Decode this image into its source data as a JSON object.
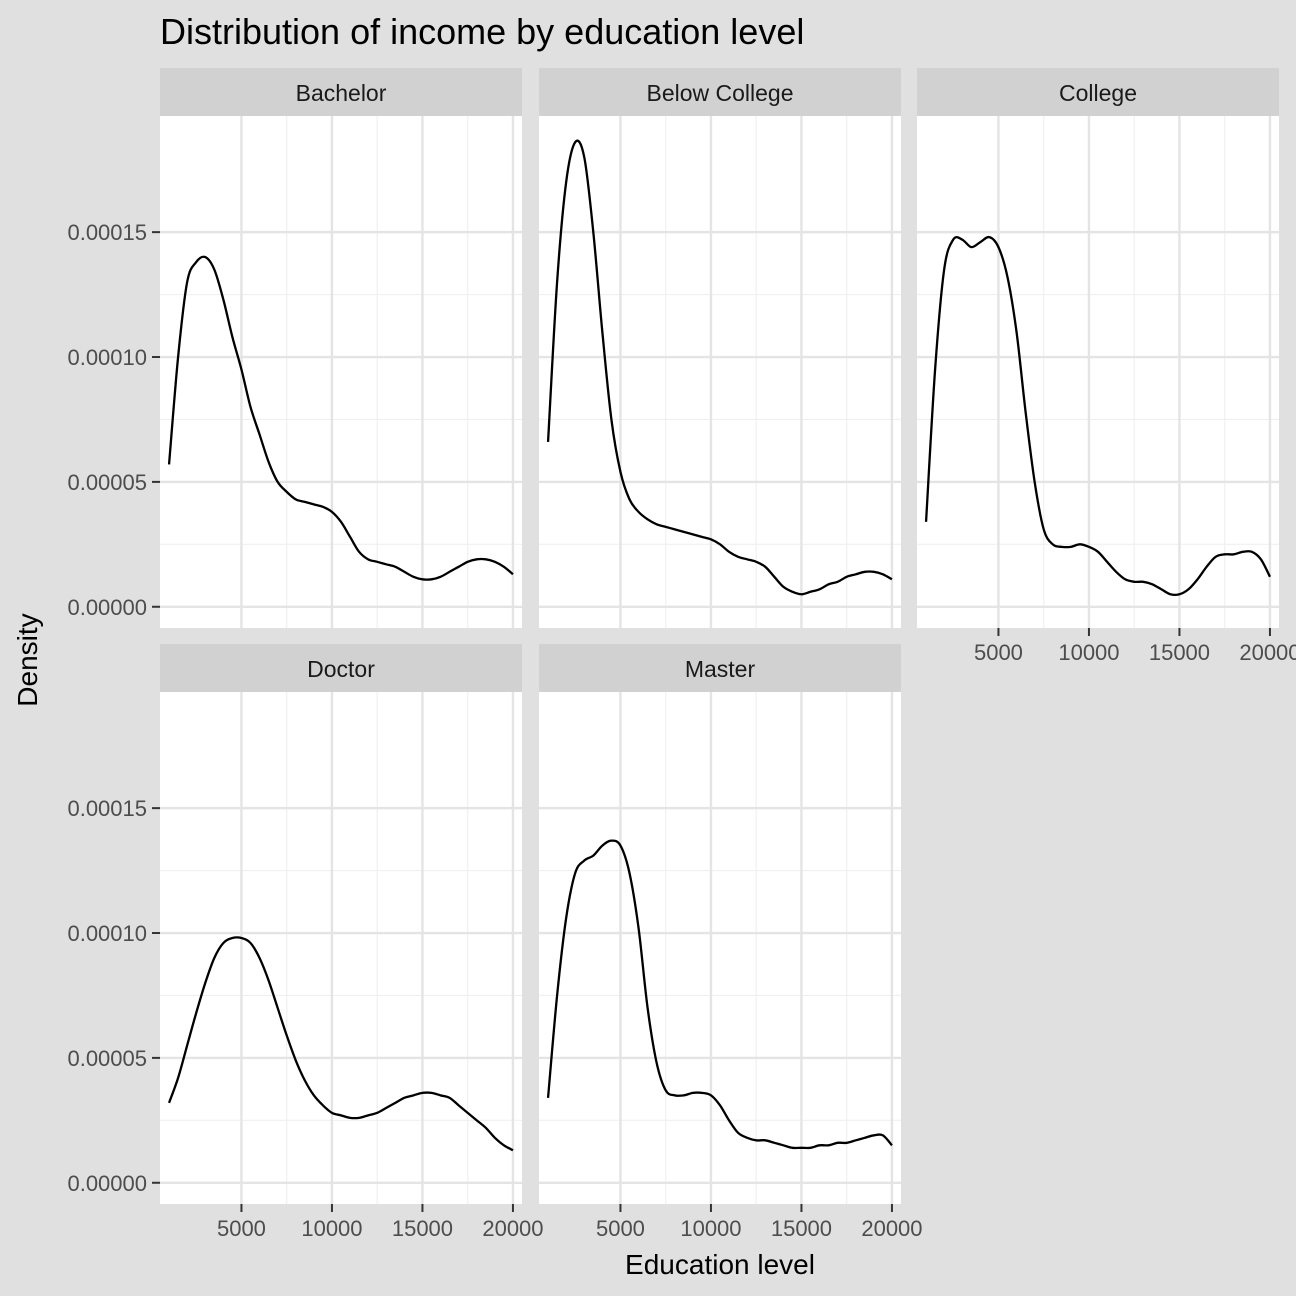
{
  "colors": {
    "background": "#e0e0e0",
    "panel_background": "#ffffff",
    "strip_background": "#d1d1d1",
    "grid": "#e4e4e4",
    "line": "#000000",
    "axis_text": "#4d4d4d",
    "title_text": "#000000"
  },
  "chart_data": {
    "type": "line",
    "title": "Distribution of income by education level",
    "xlabel": "Education level",
    "ylabel": "Density",
    "xlim": [
      500,
      20500
    ],
    "ylim": [
      -8.5e-06,
      0.0001965
    ],
    "x_ticks": [
      5000,
      10000,
      15000,
      20000
    ],
    "x_tick_labels": [
      "5000",
      "10000",
      "15000",
      "20000"
    ],
    "y_ticks": [
      0,
      5e-05,
      0.0001,
      0.00015
    ],
    "y_tick_labels": [
      "0.00000",
      "0.00005",
      "0.00010",
      "0.00015"
    ],
    "grid": true,
    "legend": "none",
    "panels": [
      {
        "name": "Bachelor",
        "x": [
          1000,
          1500,
          2000,
          2500,
          3000,
          3500,
          4000,
          4500,
          5000,
          5500,
          6000,
          6500,
          7000,
          7500,
          8000,
          8500,
          9000,
          9500,
          10000,
          10500,
          11000,
          11500,
          12000,
          12500,
          13000,
          13500,
          14000,
          14500,
          15000,
          15500,
          16000,
          16500,
          17000,
          17500,
          18000,
          18500,
          19000,
          19500,
          20000
        ],
        "y": [
          5.7e-05,
          0.0001,
          0.00013,
          0.000138,
          0.00014,
          0.000135,
          0.000123,
          0.000108,
          9.5e-05,
          8e-05,
          6.9e-05,
          5.8e-05,
          5e-05,
          4.6e-05,
          4.3e-05,
          4.2e-05,
          4.1e-05,
          4e-05,
          3.8e-05,
          3.4e-05,
          2.8e-05,
          2.2e-05,
          1.9e-05,
          1.8e-05,
          1.7e-05,
          1.6e-05,
          1.4e-05,
          1.2e-05,
          1.1e-05,
          1.1e-05,
          1.2e-05,
          1.4e-05,
          1.6e-05,
          1.8e-05,
          1.9e-05,
          1.9e-05,
          1.8e-05,
          1.6e-05,
          1.3e-05
        ]
      },
      {
        "name": "Below College",
        "x": [
          1000,
          1500,
          2000,
          2500,
          3000,
          3500,
          4000,
          4500,
          5000,
          5500,
          6000,
          6500,
          7000,
          7500,
          8000,
          8500,
          9000,
          9500,
          10000,
          10500,
          11000,
          11500,
          12000,
          12500,
          13000,
          13500,
          14000,
          14500,
          15000,
          15500,
          16000,
          16500,
          17000,
          17500,
          18000,
          18500,
          19000,
          19500,
          20000
        ],
        "y": [
          6.6e-05,
          0.00013,
          0.00017,
          0.000186,
          0.00018,
          0.00015,
          0.00011,
          7.5e-05,
          5.4e-05,
          4.3e-05,
          3.8e-05,
          3.5e-05,
          3.3e-05,
          3.2e-05,
          3.1e-05,
          3e-05,
          2.9e-05,
          2.8e-05,
          2.7e-05,
          2.5e-05,
          2.2e-05,
          2e-05,
          1.9e-05,
          1.8e-05,
          1.6e-05,
          1.2e-05,
          8e-06,
          6e-06,
          5e-06,
          6e-06,
          7e-06,
          9e-06,
          1e-05,
          1.2e-05,
          1.3e-05,
          1.4e-05,
          1.4e-05,
          1.3e-05,
          1.1e-05
        ]
      },
      {
        "name": "College",
        "x": [
          1000,
          1500,
          2000,
          2500,
          3000,
          3500,
          4000,
          4500,
          5000,
          5500,
          6000,
          6500,
          7000,
          7500,
          8000,
          8500,
          9000,
          9500,
          10000,
          10500,
          11000,
          11500,
          12000,
          12500,
          13000,
          13500,
          14000,
          14500,
          15000,
          15500,
          16000,
          16500,
          17000,
          17500,
          18000,
          18500,
          19000,
          19500,
          20000
        ],
        "y": [
          3.4e-05,
          9.5e-05,
          0.000135,
          0.000147,
          0.000147,
          0.000144,
          0.000146,
          0.000148,
          0.000144,
          0.000132,
          0.00011,
          7.8e-05,
          5e-05,
          3.1e-05,
          2.5e-05,
          2.4e-05,
          2.4e-05,
          2.5e-05,
          2.4e-05,
          2.2e-05,
          1.8e-05,
          1.4e-05,
          1.1e-05,
          1e-05,
          1e-05,
          9e-06,
          7e-06,
          5e-06,
          5e-06,
          7e-06,
          1.1e-05,
          1.6e-05,
          2e-05,
          2.1e-05,
          2.1e-05,
          2.2e-05,
          2.2e-05,
          1.9e-05,
          1.2e-05
        ]
      },
      {
        "name": "Doctor",
        "x": [
          1000,
          1500,
          2000,
          2500,
          3000,
          3500,
          4000,
          4500,
          5000,
          5500,
          6000,
          6500,
          7000,
          7500,
          8000,
          8500,
          9000,
          9500,
          10000,
          10500,
          11000,
          11500,
          12000,
          12500,
          13000,
          13500,
          14000,
          14500,
          15000,
          15500,
          16000,
          16500,
          17000,
          17500,
          18000,
          18500,
          19000,
          19500,
          20000
        ],
        "y": [
          3.2e-05,
          4.2e-05,
          5.5e-05,
          6.8e-05,
          8e-05,
          9e-05,
          9.6e-05,
          9.8e-05,
          9.8e-05,
          9.6e-05,
          9e-05,
          8.1e-05,
          7e-05,
          5.9e-05,
          4.9e-05,
          4.1e-05,
          3.5e-05,
          3.1e-05,
          2.8e-05,
          2.7e-05,
          2.6e-05,
          2.6e-05,
          2.7e-05,
          2.8e-05,
          3e-05,
          3.2e-05,
          3.4e-05,
          3.5e-05,
          3.6e-05,
          3.6e-05,
          3.5e-05,
          3.4e-05,
          3.1e-05,
          2.8e-05,
          2.5e-05,
          2.2e-05,
          1.8e-05,
          1.5e-05,
          1.3e-05
        ]
      },
      {
        "name": "Master",
        "x": [
          1000,
          1500,
          2000,
          2500,
          3000,
          3500,
          4000,
          4500,
          5000,
          5500,
          6000,
          6500,
          7000,
          7500,
          8000,
          8500,
          9000,
          9500,
          10000,
          10500,
          11000,
          11500,
          12000,
          12500,
          13000,
          13500,
          14000,
          14500,
          15000,
          15500,
          16000,
          16500,
          17000,
          17500,
          18000,
          18500,
          19000,
          19500,
          20000
        ],
        "y": [
          3.4e-05,
          7.5e-05,
          0.000106,
          0.000124,
          0.000129,
          0.000131,
          0.000135,
          0.000137,
          0.000135,
          0.000124,
          0.000102,
          7e-05,
          4.8e-05,
          3.7e-05,
          3.5e-05,
          3.5e-05,
          3.6e-05,
          3.6e-05,
          3.5e-05,
          3.1e-05,
          2.5e-05,
          2e-05,
          1.8e-05,
          1.7e-05,
          1.7e-05,
          1.6e-05,
          1.5e-05,
          1.4e-05,
          1.4e-05,
          1.4e-05,
          1.5e-05,
          1.5e-05,
          1.6e-05,
          1.6e-05,
          1.7e-05,
          1.8e-05,
          1.9e-05,
          1.9e-05,
          1.5e-05
        ]
      }
    ]
  }
}
